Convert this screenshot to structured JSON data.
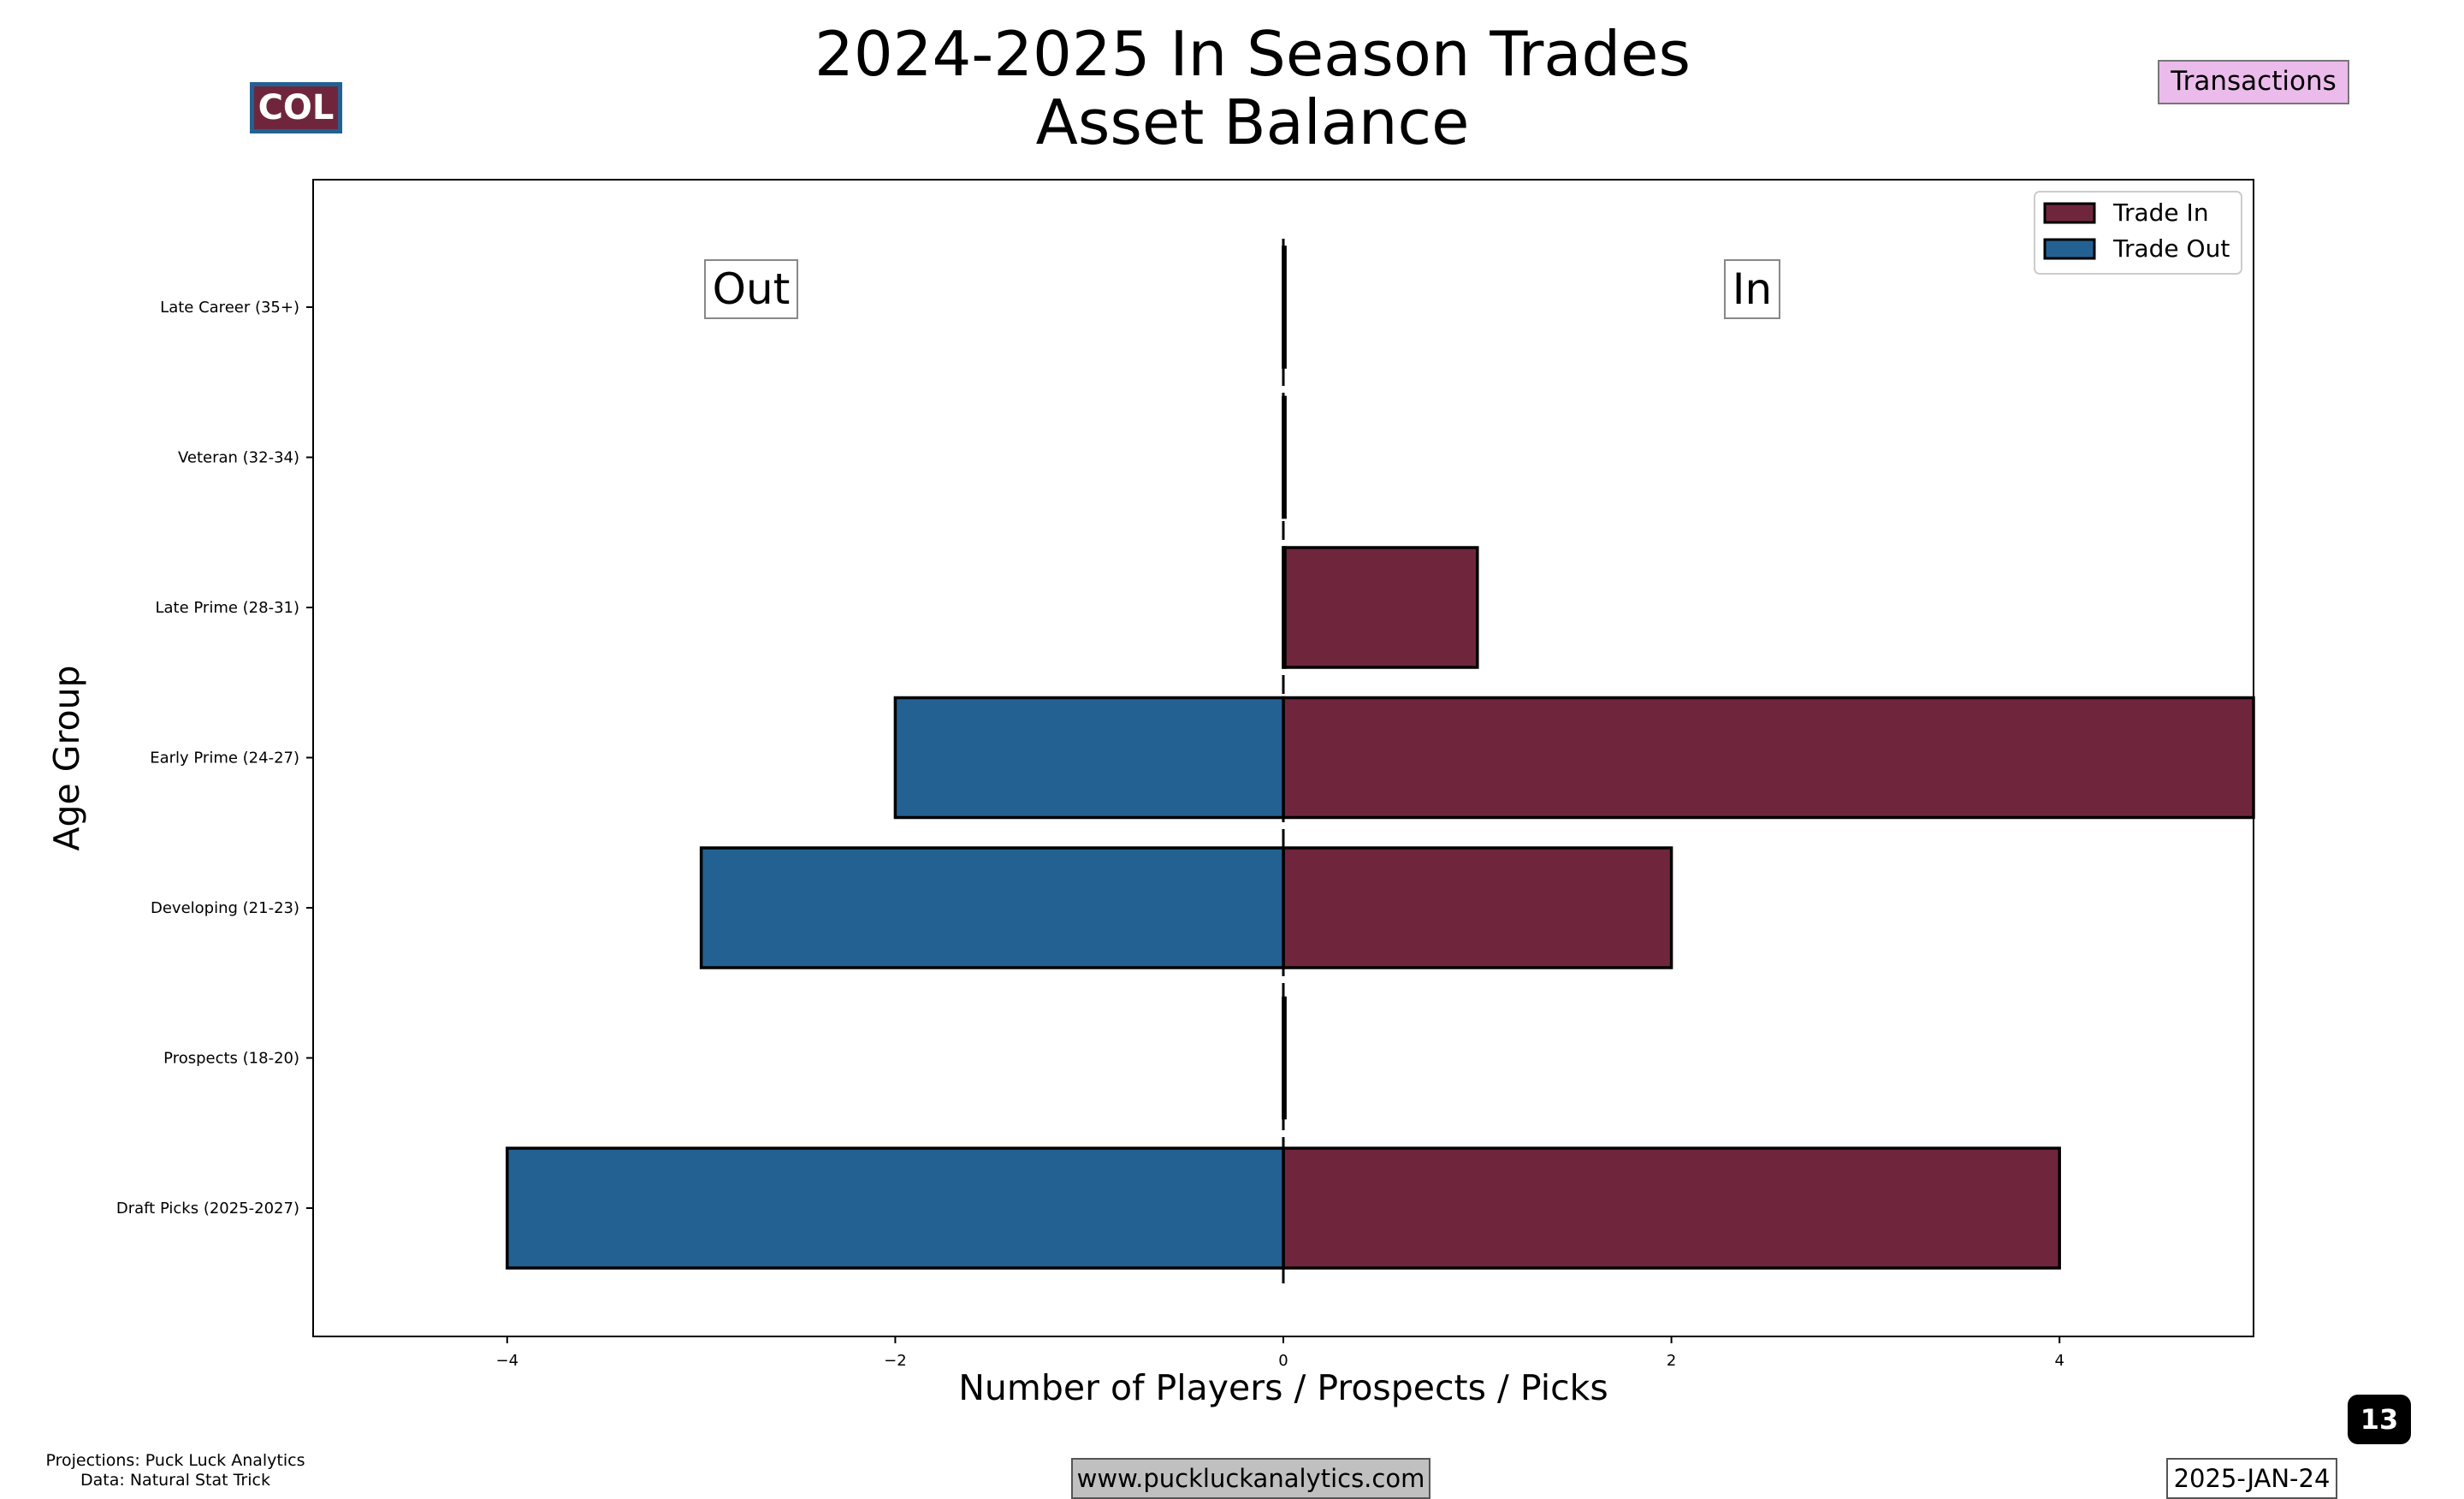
{
  "header": {
    "team_badge": "COL",
    "section_badge": "Transactions",
    "page_number": "13"
  },
  "footer": {
    "source_line1": "Projections: Puck Luck Analytics",
    "source_line2": "Data: Natural Stat Trick",
    "url": "www.puckluckanalytics.com",
    "date": "2025-JAN-24"
  },
  "colors": {
    "trade_in": "#6f263d",
    "trade_out": "#236192",
    "team_badge_bg": "#6f263d",
    "team_badge_border": "#236192",
    "section_badge_bg": "#ebbbeb",
    "url_badge_bg": "#c0c0c0"
  },
  "chart_data": {
    "type": "bar",
    "orientation": "horizontal",
    "title_line1": "2024-2025 In Season Trades",
    "title_line2": "Asset Balance",
    "xlabel": "Number of Players / Prospects / Picks",
    "ylabel": "Age Group",
    "xlim": [
      -5,
      5
    ],
    "xticks": [
      -4,
      -2,
      0,
      2,
      4
    ],
    "xtick_labels": [
      "−4",
      "−2",
      "0",
      "2",
      "4"
    ],
    "categories": [
      "Late Career (35+)",
      "Veteran (32-34)",
      "Late Prime (28-31)",
      "Early Prime (24-27)",
      "Developing (21-23)",
      "Prospects (18-20)",
      "Draft Picks (2025-2027)"
    ],
    "series": [
      {
        "name": "Trade In",
        "values": [
          0,
          0,
          1,
          5,
          2,
          0,
          4
        ]
      },
      {
        "name": "Trade Out",
        "values": [
          0,
          0,
          0,
          -2,
          -3,
          0,
          -4
        ]
      }
    ],
    "side_labels": {
      "left": "Out",
      "right": "In"
    },
    "legend_position": "top-right",
    "grid": false,
    "zero_line": "dashed"
  }
}
